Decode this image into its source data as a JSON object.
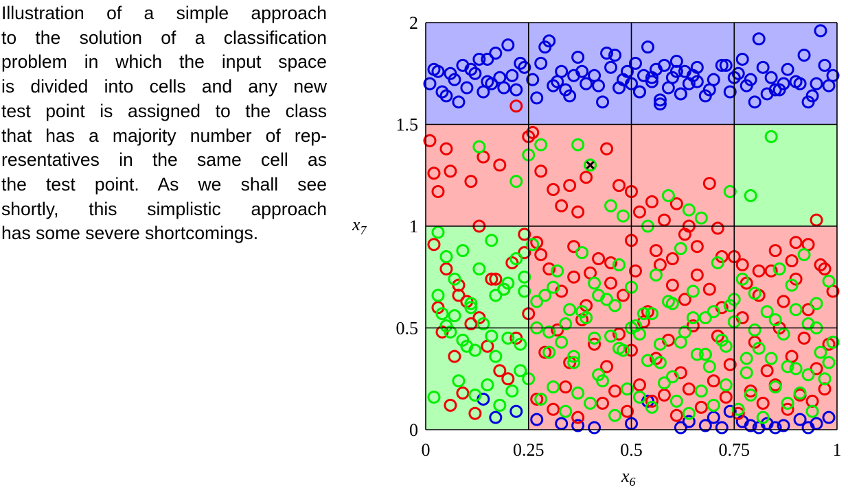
{
  "caption_lines": [
    "Illustration of a simple approach",
    "to the solution of a classification",
    "problem in which the input space",
    "is divided into cells and any new",
    "test point is assigned to the class",
    "that has a majority number of rep-",
    "resentatives in the same cell as",
    "the test point.  As we shall see",
    "shortly, this simplistic approach",
    "has some severe shortcomings."
  ],
  "chart_data": {
    "type": "scatter",
    "xlabel": {
      "base": "x",
      "sub": "6"
    },
    "ylabel": {
      "base": "x",
      "sub": "7"
    },
    "xlim": [
      0,
      1
    ],
    "ylim": [
      0,
      2
    ],
    "xticks": [
      0,
      0.25,
      0.5,
      0.75,
      1
    ],
    "xtick_labels": [
      "0",
      "0.25",
      "0.5",
      "0.75",
      "1"
    ],
    "yticks": [
      0,
      0.5,
      1,
      1.5,
      2
    ],
    "ytick_labels": [
      "0",
      "0.5",
      "1",
      "1.5",
      "2"
    ],
    "grid": {
      "x_breaks": [
        0,
        0.25,
        0.5,
        0.75,
        1
      ],
      "y_breaks": [
        0,
        0.5,
        1,
        1.5,
        2
      ]
    },
    "colors": {
      "blue": "#0000dd",
      "red": "#ee0000",
      "green": "#00ee00",
      "blue_cell": "#b3b3ff",
      "red_cell": "#ffb3b3",
      "green_cell": "#b3ffb3"
    },
    "cell_classes": [
      [
        "green",
        "red",
        "red",
        "red"
      ],
      [
        "green",
        "red",
        "red",
        "red"
      ],
      [
        "red",
        "red",
        "red",
        "green"
      ],
      [
        "blue",
        "blue",
        "blue",
        "blue"
      ]
    ],
    "test_point": {
      "x": 0.4,
      "y": 1.3
    },
    "series": [
      {
        "class": "blue",
        "x": [
          0.01,
          0.03,
          0.05,
          0.07,
          0.09,
          0.1,
          0.12,
          0.13,
          0.14,
          0.15,
          0.17,
          0.18,
          0.2,
          0.22,
          0.24,
          0.26,
          0.28,
          0.3,
          0.31,
          0.33,
          0.35,
          0.37,
          0.39,
          0.41,
          0.43,
          0.45,
          0.46,
          0.47,
          0.48,
          0.49,
          0.5,
          0.51,
          0.52,
          0.53,
          0.54,
          0.55,
          0.56,
          0.57,
          0.58,
          0.59,
          0.6,
          0.61,
          0.62,
          0.63,
          0.64,
          0.66,
          0.68,
          0.7,
          0.72,
          0.74,
          0.76,
          0.77,
          0.78,
          0.8,
          0.82,
          0.84,
          0.86,
          0.88,
          0.9,
          0.92,
          0.94,
          0.96,
          0.98,
          0.99,
          0.04,
          0.08,
          0.11,
          0.16,
          0.19,
          0.23,
          0.27,
          0.29,
          0.32,
          0.36,
          0.42,
          0.44,
          0.57,
          0.61,
          0.65,
          0.69,
          0.73,
          0.79,
          0.83,
          0.87,
          0.93,
          0.97,
          0.06,
          0.21,
          0.34,
          0.55,
          0.66,
          0.75,
          0.85,
          0.95,
          0.02,
          0.15,
          0.38,
          0.52,
          0.62,
          0.81,
          0.91,
          0.14,
          0.17,
          0.22,
          0.27,
          0.33,
          0.37,
          0.41,
          0.5,
          0.54,
          0.62,
          0.64,
          0.68,
          0.7,
          0.72,
          0.74,
          0.77,
          0.79,
          0.81,
          0.83,
          0.85,
          0.87,
          0.91,
          0.93,
          0.95,
          0.98
        ],
        "y": [
          1.7,
          1.76,
          1.64,
          1.72,
          1.79,
          1.68,
          1.75,
          1.82,
          1.66,
          1.71,
          1.85,
          1.73,
          1.89,
          1.67,
          1.78,
          1.72,
          1.8,
          1.91,
          1.69,
          1.76,
          1.64,
          1.83,
          1.7,
          1.74,
          1.61,
          1.78,
          1.84,
          1.68,
          1.72,
          1.76,
          1.7,
          1.8,
          1.66,
          1.74,
          1.88,
          1.71,
          1.77,
          1.62,
          1.79,
          1.68,
          1.73,
          1.81,
          1.65,
          1.76,
          1.7,
          1.78,
          1.64,
          1.72,
          1.79,
          1.66,
          1.75,
          1.82,
          1.69,
          1.61,
          1.78,
          1.73,
          1.67,
          1.77,
          1.71,
          1.84,
          1.64,
          1.96,
          1.69,
          1.74,
          1.66,
          1.61,
          1.77,
          1.7,
          1.68,
          1.8,
          1.63,
          1.88,
          1.71,
          1.74,
          1.69,
          1.85,
          1.6,
          1.76,
          1.74,
          1.67,
          1.79,
          1.72,
          1.65,
          1.7,
          1.61,
          1.79,
          1.75,
          1.74,
          1.67,
          1.73,
          1.71,
          1.73,
          1.67,
          1.7,
          1.77,
          1.82,
          1.76,
          1.66,
          1.65,
          1.92,
          1.7,
          0.15,
          0.06,
          0.09,
          0.05,
          0.03,
          0.02,
          0.01,
          0.03,
          0.14,
          0.01,
          0.04,
          0.02,
          0.06,
          0.01,
          0.09,
          0.04,
          0.02,
          0.01,
          0.03,
          0.01,
          0.02,
          0.05,
          0.01,
          0.03,
          0.06
        ]
      },
      {
        "class": "red",
        "x": [
          0.01,
          0.02,
          0.03,
          0.05,
          0.06,
          0.11,
          0.13,
          0.14,
          0.18,
          0.22,
          0.25,
          0.26,
          0.28,
          0.31,
          0.33,
          0.35,
          0.37,
          0.39,
          0.44,
          0.47,
          0.5,
          0.52,
          0.55,
          0.58,
          0.61,
          0.64,
          0.69,
          0.71,
          0.9,
          0.95,
          0.02,
          0.05,
          0.08,
          0.1,
          0.13,
          0.16,
          0.19,
          0.21,
          0.24,
          0.27,
          0.3,
          0.33,
          0.36,
          0.39,
          0.42,
          0.45,
          0.48,
          0.51,
          0.54,
          0.57,
          0.6,
          0.63,
          0.66,
          0.69,
          0.72,
          0.75,
          0.78,
          0.81,
          0.84,
          0.87,
          0.9,
          0.93,
          0.96,
          0.99,
          0.04,
          0.07,
          0.11,
          0.15,
          0.18,
          0.22,
          0.25,
          0.29,
          0.32,
          0.35,
          0.38,
          0.41,
          0.44,
          0.47,
          0.5,
          0.53,
          0.56,
          0.59,
          0.62,
          0.65,
          0.68,
          0.71,
          0.74,
          0.77,
          0.8,
          0.83,
          0.86,
          0.89,
          0.92,
          0.95,
          0.98,
          0.06,
          0.09,
          0.12,
          0.2,
          0.27,
          0.31,
          0.34,
          0.37,
          0.43,
          0.46,
          0.49,
          0.52,
          0.55,
          0.58,
          0.61,
          0.64,
          0.67,
          0.7,
          0.73,
          0.76,
          0.79,
          0.82,
          0.85,
          0.88,
          0.91,
          0.94,
          0.97,
          0.03,
          0.08,
          0.17,
          0.24,
          0.28,
          0.36,
          0.4,
          0.45,
          0.5,
          0.56,
          0.6,
          0.63,
          0.66,
          0.72,
          0.77,
          0.81,
          0.85,
          0.89,
          0.93,
          0.97
        ],
        "y": [
          1.42,
          1.26,
          1.17,
          1.38,
          1.27,
          1.22,
          1.0,
          1.34,
          1.3,
          1.59,
          1.44,
          1.46,
          1.27,
          1.18,
          1.1,
          1.2,
          1.07,
          1.24,
          1.38,
          1.2,
          1.17,
          1.07,
          1.12,
          1.03,
          1.11,
          1.0,
          1.21,
          0.99,
          0.92,
          1.03,
          0.91,
          0.79,
          0.71,
          0.63,
          0.55,
          0.74,
          0.69,
          0.82,
          0.87,
          0.92,
          0.79,
          0.68,
          0.75,
          0.61,
          0.84,
          0.72,
          0.66,
          0.78,
          0.58,
          0.81,
          0.71,
          0.64,
          0.76,
          0.69,
          0.6,
          0.85,
          0.72,
          0.66,
          0.78,
          0.63,
          0.74,
          0.59,
          0.81,
          0.68,
          0.48,
          0.36,
          0.52,
          0.41,
          0.29,
          0.45,
          0.57,
          0.38,
          0.49,
          0.33,
          0.54,
          0.42,
          0.31,
          0.47,
          0.39,
          0.53,
          0.35,
          0.44,
          0.28,
          0.51,
          0.37,
          0.46,
          0.32,
          0.55,
          0.43,
          0.29,
          0.5,
          0.36,
          0.45,
          0.3,
          0.42,
          0.12,
          0.18,
          0.08,
          0.25,
          0.15,
          0.1,
          0.21,
          0.06,
          0.13,
          0.19,
          0.09,
          0.22,
          0.14,
          0.17,
          0.07,
          0.2,
          0.11,
          0.24,
          0.16,
          0.08,
          0.19,
          0.13,
          0.22,
          0.1,
          0.17,
          0.14,
          0.2,
          0.6,
          0.66,
          0.74,
          0.96,
          0.86,
          0.9,
          0.77,
          0.82,
          0.93,
          0.88,
          0.84,
          0.96,
          0.9,
          0.85,
          0.81,
          0.78,
          0.88,
          0.83,
          0.91,
          0.79
        ]
      },
      {
        "class": "green",
        "x": [
          0.03,
          0.05,
          0.07,
          0.09,
          0.11,
          0.13,
          0.16,
          0.19,
          0.22,
          0.24,
          0.26,
          0.29,
          0.32,
          0.35,
          0.38,
          0.41,
          0.44,
          0.47,
          0.5,
          0.53,
          0.56,
          0.59,
          0.62,
          0.65,
          0.68,
          0.71,
          0.74,
          0.77,
          0.8,
          0.83,
          0.86,
          0.89,
          0.92,
          0.95,
          0.98,
          0.04,
          0.06,
          0.1,
          0.14,
          0.17,
          0.2,
          0.23,
          0.27,
          0.3,
          0.33,
          0.36,
          0.39,
          0.42,
          0.45,
          0.48,
          0.51,
          0.54,
          0.57,
          0.6,
          0.63,
          0.66,
          0.69,
          0.72,
          0.75,
          0.78,
          0.81,
          0.84,
          0.87,
          0.9,
          0.93,
          0.96,
          0.99,
          0.08,
          0.12,
          0.15,
          0.18,
          0.21,
          0.25,
          0.28,
          0.31,
          0.34,
          0.37,
          0.4,
          0.43,
          0.46,
          0.49,
          0.52,
          0.55,
          0.58,
          0.61,
          0.64,
          0.67,
          0.7,
          0.73,
          0.76,
          0.79,
          0.82,
          0.85,
          0.88,
          0.91,
          0.94,
          0.97,
          0.13,
          0.22,
          0.25,
          0.28,
          0.37,
          0.4,
          0.45,
          0.48,
          0.54,
          0.59,
          0.64,
          0.67,
          0.74,
          0.84,
          0.79,
          0.02,
          0.07,
          0.11,
          0.17,
          0.2,
          0.24,
          0.27,
          0.31,
          0.34,
          0.38,
          0.42,
          0.46,
          0.5,
          0.55,
          0.6,
          0.65,
          0.7,
          0.75,
          0.8,
          0.85,
          0.9,
          0.95,
          0.03,
          0.05,
          0.09,
          0.12,
          0.16,
          0.23,
          0.3,
          0.36,
          0.41,
          0.47,
          0.52,
          0.57,
          0.62,
          0.68,
          0.73,
          0.78,
          0.88,
          0.93,
          0.98
        ],
        "y": [
          0.97,
          0.85,
          0.74,
          0.88,
          0.62,
          0.79,
          0.93,
          0.69,
          0.84,
          0.75,
          0.91,
          0.66,
          0.78,
          0.59,
          0.87,
          0.72,
          0.64,
          0.81,
          0.7,
          0.57,
          0.76,
          0.63,
          0.89,
          0.68,
          0.55,
          0.82,
          0.61,
          0.74,
          0.67,
          0.58,
          0.79,
          0.71,
          0.86,
          0.62,
          0.73,
          0.57,
          0.48,
          0.41,
          0.52,
          0.36,
          0.45,
          0.29,
          0.5,
          0.38,
          0.43,
          0.33,
          0.55,
          0.27,
          0.46,
          0.39,
          0.51,
          0.34,
          0.42,
          0.26,
          0.48,
          0.37,
          0.31,
          0.44,
          0.53,
          0.28,
          0.4,
          0.35,
          0.47,
          0.3,
          0.52,
          0.38,
          0.43,
          0.24,
          0.17,
          0.22,
          0.12,
          0.19,
          0.25,
          0.15,
          0.21,
          0.09,
          0.18,
          0.13,
          0.24,
          0.07,
          0.2,
          0.16,
          0.11,
          0.23,
          0.14,
          0.08,
          0.19,
          0.12,
          0.22,
          0.1,
          0.17,
          0.06,
          0.21,
          0.13,
          0.18,
          0.09,
          0.25,
          1.39,
          1.22,
          1.35,
          1.4,
          1.4,
          1.3,
          1.1,
          1.05,
          1.0,
          1.15,
          1.08,
          1.04,
          1.17,
          1.44,
          1.15,
          0.16,
          0.56,
          0.6,
          0.66,
          0.72,
          0.68,
          0.63,
          0.7,
          0.52,
          0.58,
          0.66,
          0.61,
          0.5,
          0.57,
          0.62,
          0.55,
          0.58,
          0.64,
          0.49,
          0.54,
          0.59,
          0.5,
          0.66,
          0.51,
          0.44,
          0.39,
          0.46,
          0.42,
          0.48,
          0.36,
          0.45,
          0.4,
          0.47,
          0.33,
          0.43,
          0.37,
          0.41,
          0.35,
          0.31,
          0.27,
          0.33
        ]
      }
    ]
  }
}
